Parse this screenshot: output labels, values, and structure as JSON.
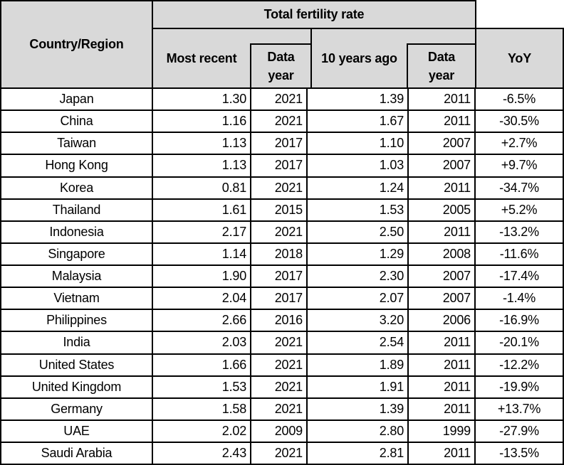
{
  "chart_data": {
    "type": "table",
    "group_header": "Total fertility rate",
    "columns": [
      "Country/Region",
      "Most recent",
      "Data year",
      "10 years ago",
      "Data year",
      "YoY"
    ],
    "rows": [
      [
        "Japan",
        "1.30",
        "2021",
        "1.39",
        "2011",
        "-6.5%"
      ],
      [
        "China",
        "1.16",
        "2021",
        "1.67",
        "2011",
        "-30.5%"
      ],
      [
        "Taiwan",
        "1.13",
        "2017",
        "1.10",
        "2007",
        "+2.7%"
      ],
      [
        "Hong Kong",
        "1.13",
        "2017",
        "1.03",
        "2007",
        "+9.7%"
      ],
      [
        "Korea",
        "0.81",
        "2021",
        "1.24",
        "2011",
        "-34.7%"
      ],
      [
        "Thailand",
        "1.61",
        "2015",
        "1.53",
        "2005",
        "+5.2%"
      ],
      [
        "Indonesia",
        "2.17",
        "2021",
        "2.50",
        "2011",
        "-13.2%"
      ],
      [
        "Singapore",
        "1.14",
        "2018",
        "1.29",
        "2008",
        "-11.6%"
      ],
      [
        "Malaysia",
        "1.90",
        "2017",
        "2.30",
        "2007",
        "-17.4%"
      ],
      [
        "Vietnam",
        "2.04",
        "2017",
        "2.07",
        "2007",
        "-1.4%"
      ],
      [
        "Philippines",
        "2.66",
        "2016",
        "3.20",
        "2006",
        "-16.9%"
      ],
      [
        "India",
        "2.03",
        "2021",
        "2.54",
        "2011",
        "-20.1%"
      ],
      [
        "United States",
        "1.66",
        "2021",
        "1.89",
        "2011",
        "-12.2%"
      ],
      [
        "United Kingdom",
        "1.53",
        "2021",
        "1.91",
        "2011",
        "-19.9%"
      ],
      [
        "Germany",
        "1.58",
        "2021",
        "1.39",
        "2011",
        "+13.7%"
      ],
      [
        "UAE",
        "2.02",
        "2009",
        "2.80",
        "1999",
        "-27.9%"
      ],
      [
        "Saudi Arabia",
        "2.43",
        "2021",
        "2.81",
        "2011",
        "-13.5%"
      ]
    ]
  },
  "style": {
    "header_bg": "#d9d9d9",
    "border_color": "#000000",
    "corner_bg": "#ffffff"
  }
}
